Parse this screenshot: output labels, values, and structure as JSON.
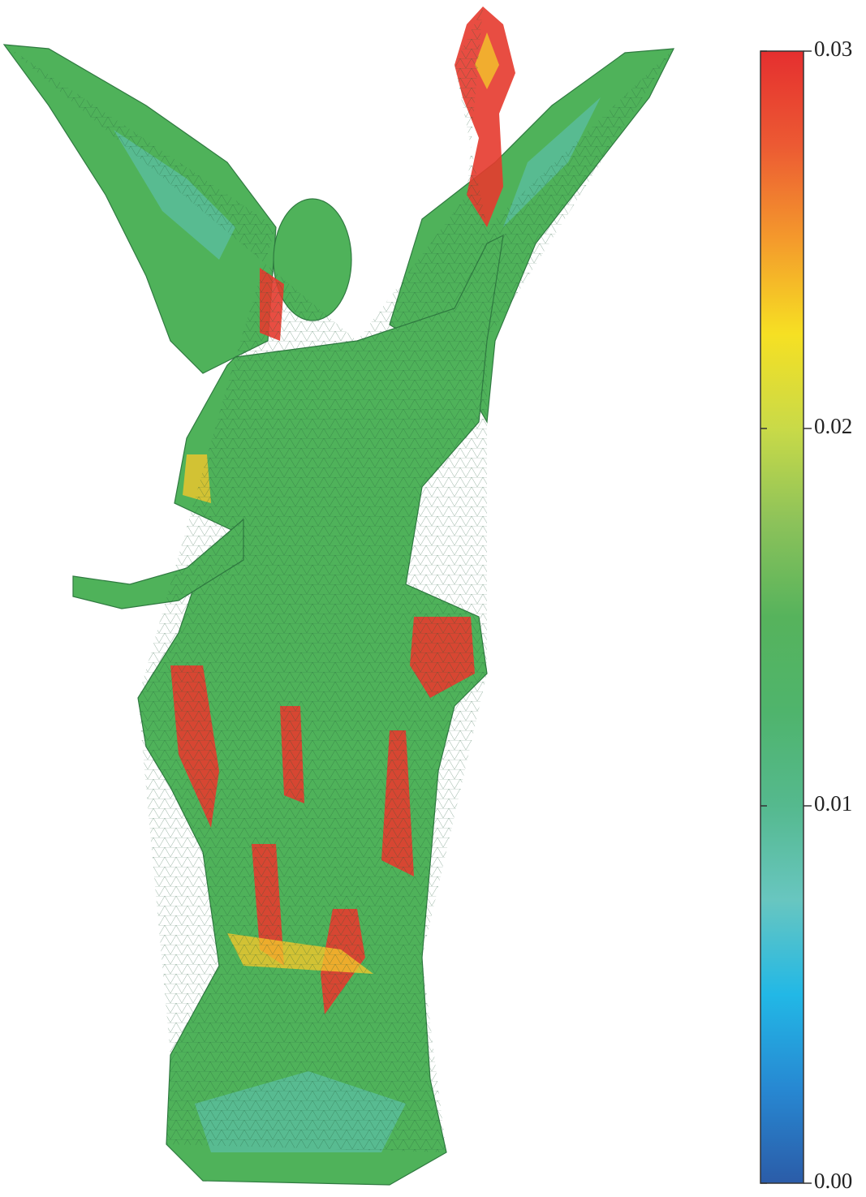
{
  "chart_data": {
    "type": "colorbar",
    "clim": [
      0,
      0.03
    ],
    "ticks": [
      {
        "value": 0,
        "label": "0.00"
      },
      0.01,
      0.02,
      0.03
    ],
    "colors": [
      "#2b5ca8",
      "#2788d2",
      "#22b8e6",
      "#68c6c0",
      "#55b98e",
      "#4fb46c",
      "#56b35c",
      "#8cc25a",
      "#c9da48",
      "#f6e023",
      "#f49a2c",
      "#ec5a33",
      "#e52f2f"
    ]
  }
}
